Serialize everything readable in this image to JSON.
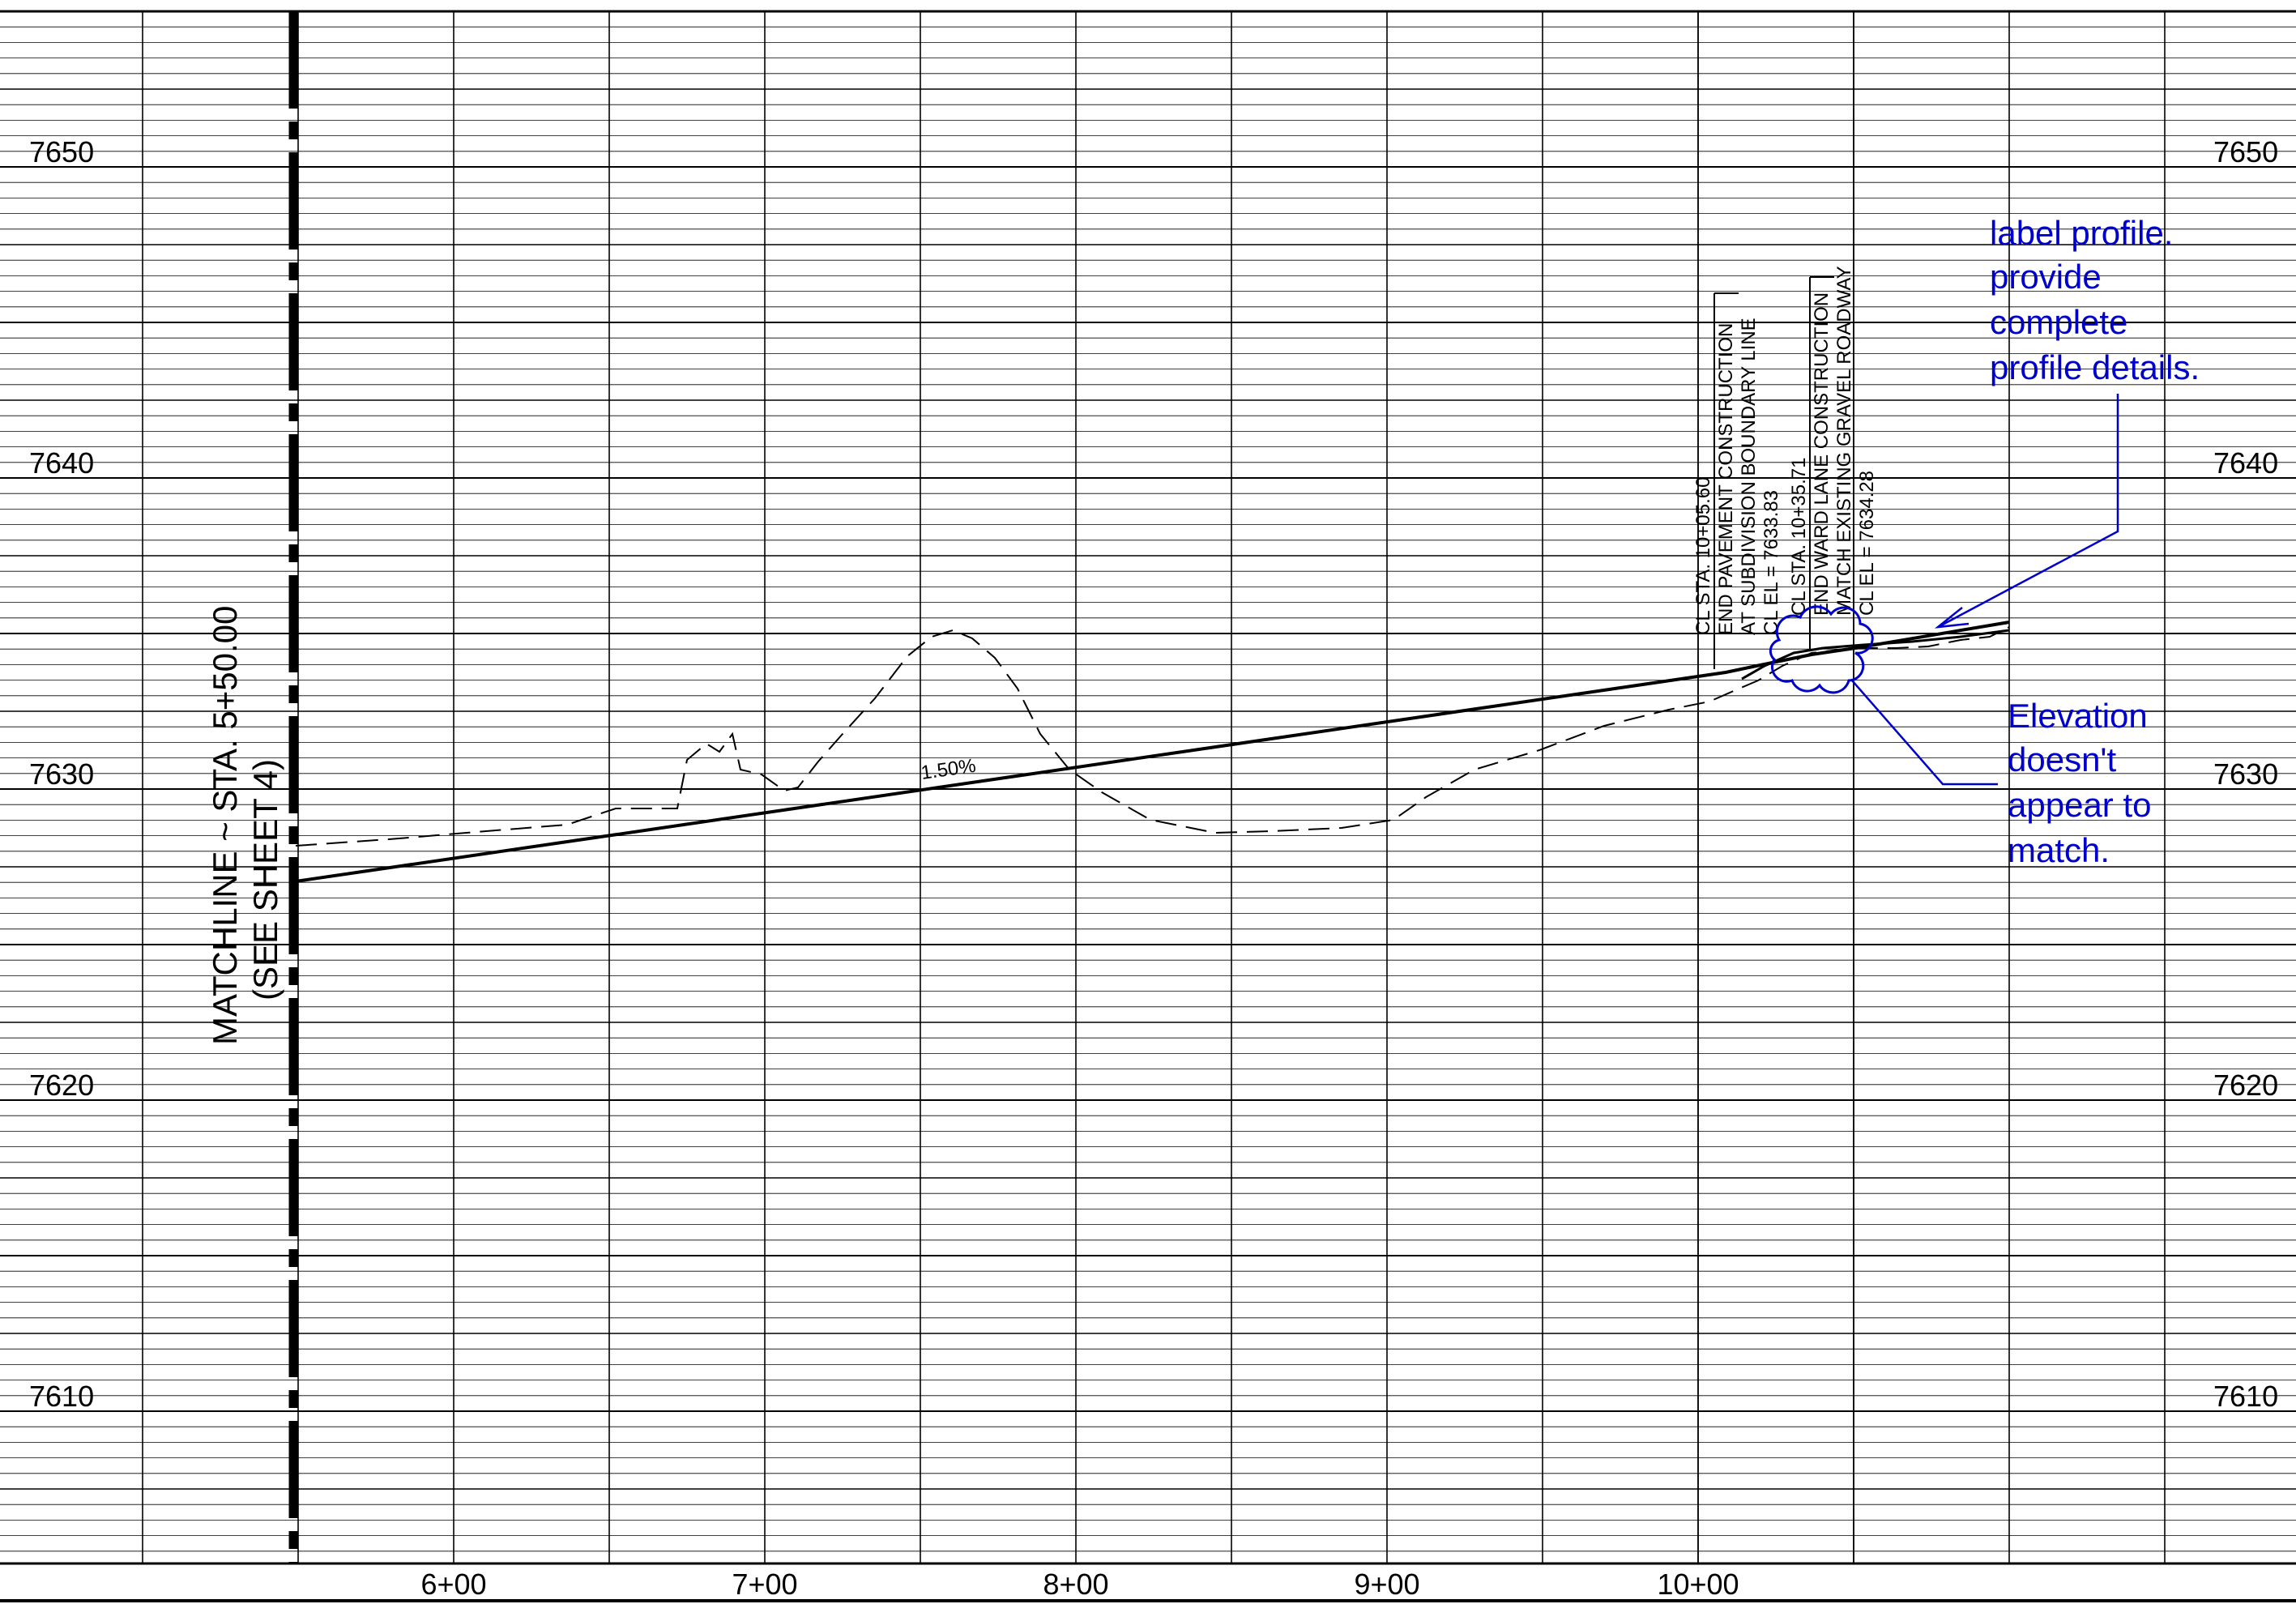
{
  "profile": {
    "elevation_labels": [
      "7650",
      "7640",
      "7630",
      "7620",
      "7610"
    ],
    "station_labels": [
      "6+00",
      "7+00",
      "8+00",
      "9+00",
      "10+00"
    ],
    "matchline": {
      "line1": "MATCHLINE ~ STA. 5+50.00",
      "line2": "(SEE SHEET 4)"
    },
    "grade_label": "1.50%",
    "callout_1": {
      "line1": "CL STA. 10+05.60",
      "line2": "END PAVEMENT CONSTRUCTION",
      "line3": "AT SUBDIVISION BOUNDARY LINE",
      "line4": "CL EL = 7633.83"
    },
    "callout_2": {
      "line1": "CL STA. 10+35.71",
      "line2": "END WARD LANE CONSTRUCTION",
      "line3": "MATCH EXISTING GRAVEL ROADWAY",
      "line4": "CL EL = 7634.28"
    }
  },
  "review_notes": {
    "note_1": [
      "label profile.",
      "provide",
      "complete",
      "profile details."
    ],
    "note_2": [
      "Elevation",
      "doesn't",
      "appear to",
      "match."
    ]
  },
  "colors": {
    "markup": "#0000cc",
    "grid": "#000000"
  }
}
